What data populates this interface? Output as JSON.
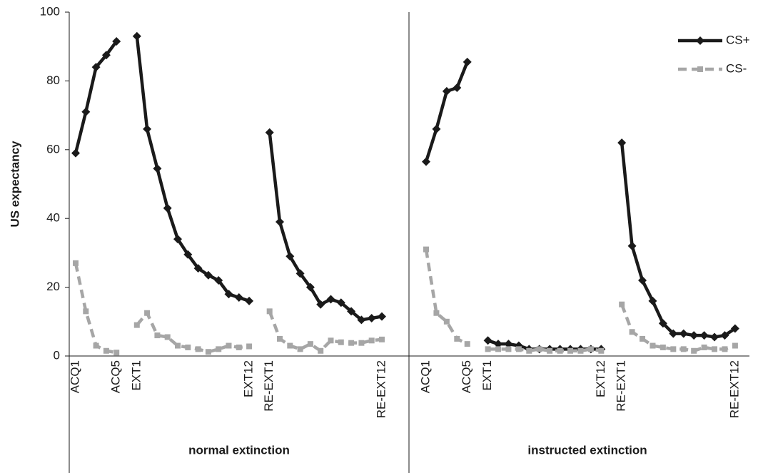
{
  "chart_data": {
    "type": "line",
    "ylabel": "US expectancy",
    "panel_labels": [
      "normal extinction",
      "instructed extinction"
    ],
    "categories": [
      "ACQ1",
      null,
      null,
      null,
      "ACQ5",
      null,
      "EXT1",
      null,
      null,
      null,
      null,
      null,
      null,
      null,
      null,
      null,
      null,
      "EXT12",
      null,
      "RE-EXT1",
      null,
      null,
      null,
      null,
      null,
      null,
      null,
      null,
      null,
      null,
      "RE-EXT12",
      "ACQ1",
      null,
      null,
      null,
      "ACQ5",
      null,
      "EXT1",
      null,
      null,
      null,
      null,
      null,
      null,
      null,
      null,
      null,
      null,
      "EXT12",
      null,
      "RE-EXT1",
      null,
      null,
      null,
      null,
      null,
      null,
      null,
      null,
      null,
      null,
      "RE-EXT12"
    ],
    "series": [
      {
        "name": "CS+",
        "color": "#1a1a1a",
        "values": [
          59,
          71,
          84,
          87.5,
          91.5,
          null,
          93,
          66,
          54.5,
          43,
          34,
          29.5,
          25.5,
          23.5,
          22,
          18,
          17,
          16,
          null,
          65,
          39,
          29,
          24,
          20,
          15,
          16.5,
          15.5,
          13,
          10.5,
          11,
          11.5,
          56.5,
          66,
          77,
          78,
          85.5,
          null,
          4.5,
          3.5,
          3.5,
          3,
          2,
          2,
          2,
          2,
          2,
          2,
          2,
          2,
          null,
          62,
          32,
          22,
          16,
          9.5,
          6.5,
          6.5,
          6,
          6,
          5.5,
          6,
          8
        ]
      },
      {
        "name": "CS-",
        "color": "#a6a6a6",
        "values": [
          27,
          13,
          3,
          1.5,
          1,
          null,
          9,
          12.5,
          6,
          5.5,
          3,
          2.5,
          2,
          1.2,
          2,
          3,
          2.5,
          2.8,
          null,
          13,
          5,
          3,
          2,
          3.5,
          1.5,
          4.5,
          4,
          3.8,
          3.8,
          4.5,
          4.8,
          31,
          12.5,
          10,
          5,
          3.5,
          null,
          2,
          2,
          2,
          2,
          1.5,
          2,
          1.5,
          1.5,
          1.5,
          1.5,
          2,
          1.5,
          null,
          15,
          7,
          5,
          3,
          2.5,
          2,
          2,
          1.5,
          2.5,
          2,
          2,
          3
        ]
      }
    ],
    "ylim": [
      0,
      100
    ],
    "yticks": [
      0,
      20,
      40,
      60,
      80,
      100
    ],
    "grid": false,
    "legend": "top-right"
  }
}
